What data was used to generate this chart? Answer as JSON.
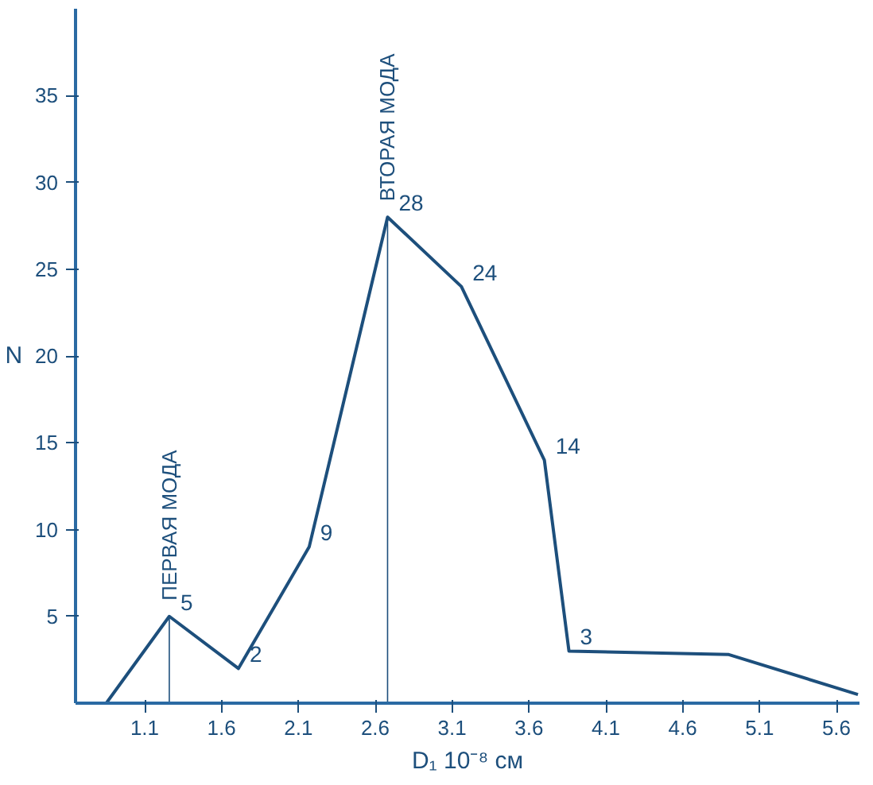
{
  "chart_data": {
    "type": "line",
    "xlabel": "D₁ 10⁻⁸ см",
    "ylabel": "N",
    "x": [
      0.85,
      1.26,
      1.71,
      2.17,
      2.68,
      3.16,
      3.7,
      3.86,
      4.9,
      5.74
    ],
    "values": [
      0,
      5,
      2,
      9,
      28,
      24,
      14,
      3,
      2.8,
      0.5
    ],
    "value_labels": [
      null,
      "5",
      "2",
      "9",
      "28",
      "24",
      "14",
      "3",
      null,
      null
    ],
    "color": "#1d4f7c",
    "xlim": [
      0.65,
      5.75
    ],
    "ylim": [
      0,
      40
    ],
    "xticks": [
      1.1,
      1.6,
      2.1,
      2.6,
      3.1,
      3.6,
      4.1,
      4.6,
      5.1,
      5.6
    ],
    "yticks": [
      5,
      10,
      15,
      20,
      25,
      30,
      35
    ],
    "grid": false,
    "marker": "none",
    "line_style": "solid",
    "annotations": [
      {
        "text": "ПЕРВАЯ МОДА",
        "x": 1.26,
        "y": 5
      },
      {
        "text": "ВТОРАЯ МОДА",
        "x": 2.68,
        "y": 28
      }
    ]
  }
}
